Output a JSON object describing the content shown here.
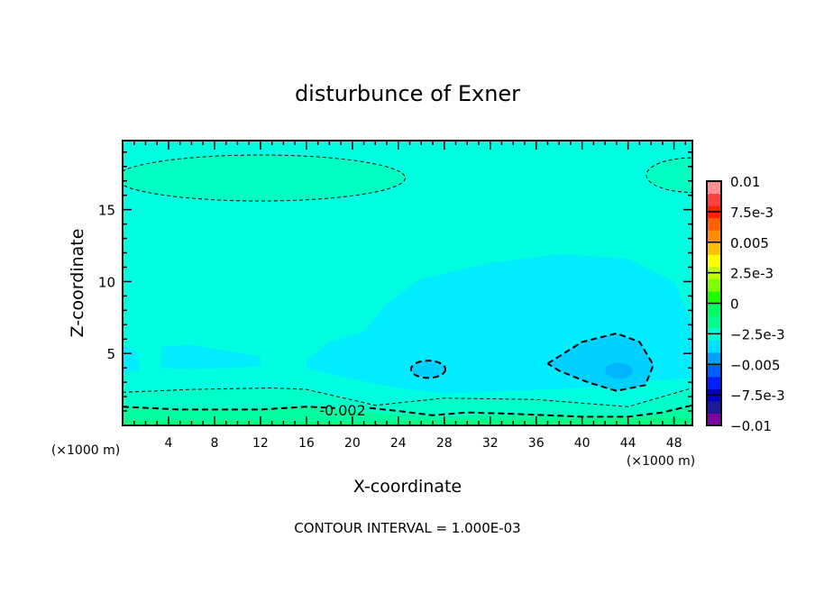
{
  "chart_data": {
    "type": "contour",
    "title": "disturbunce of Exner",
    "xlabel": "X-coordinate",
    "ylabel": "Z-coordinate",
    "x_unit_label": "(×1000 m)",
    "x_unit_label_left": "(×1000 m)",
    "xlim": [
      0,
      49.6
    ],
    "ylim": [
      0,
      19.8
    ],
    "xticks": [
      4,
      8,
      12,
      16,
      20,
      24,
      28,
      32,
      36,
      40,
      44,
      48
    ],
    "yticks": [
      5,
      10,
      15
    ],
    "footer": "CONTOUR INTERVAL = 1.000E-03",
    "contour_interval": 0.001,
    "contour_label": "-0.002",
    "colorbar": {
      "range": [
        -0.01,
        0.01
      ],
      "ticks": [
        {
          "value": 0.01,
          "label": "0.01"
        },
        {
          "value": 0.0075,
          "label": "7.5e-3"
        },
        {
          "value": 0.005,
          "label": "0.005"
        },
        {
          "value": 0.0025,
          "label": "2.5e-3"
        },
        {
          "value": 0,
          "label": "0"
        },
        {
          "value": -0.0025,
          "label": "−2.5e-3"
        },
        {
          "value": -0.005,
          "label": "−0.005"
        },
        {
          "value": -0.0075,
          "label": "−7.5e-3"
        },
        {
          "value": -0.01,
          "label": "−0.01"
        }
      ],
      "colors": [
        "#8000a0",
        "#1a1a9a",
        "#0000c8",
        "#0020ff",
        "#0060ff",
        "#00a0ff",
        "#00e0ff",
        "#00ffd0",
        "#00ff90",
        "#00ff60",
        "#20ff00",
        "#80ff00",
        "#c0ff00",
        "#ffff00",
        "#ffc000",
        "#ff9000",
        "#ff6000",
        "#ff2000",
        "#ff4040",
        "#ff9090"
      ]
    },
    "regions": [
      {
        "name": "background",
        "level": -0.0025,
        "color": "#00ffe0"
      },
      {
        "name": "top-left-high",
        "level": -0.0015,
        "color": "#00ffc0",
        "ellipse": [
          12,
          17.2,
          12.6,
          1.6
        ]
      },
      {
        "name": "top-right-high",
        "level": -0.0015,
        "color": "#00ffc0",
        "ellipse": [
          49.6,
          17.4,
          4,
          1.2
        ]
      },
      {
        "name": "left-low",
        "level": -0.0035,
        "color": "#00ecff",
        "poly": [
          [
            0,
            5.6
          ],
          [
            1.4,
            5
          ],
          [
            1.4,
            3.8
          ],
          [
            0,
            3.6
          ]
        ]
      },
      {
        "name": "left-low-2",
        "level": -0.0035,
        "color": "#00ecff",
        "poly": [
          [
            3.4,
            5.5
          ],
          [
            6,
            5.6
          ],
          [
            9,
            5.2
          ],
          [
            12,
            4.8
          ],
          [
            12,
            4.1
          ],
          [
            9,
            4
          ],
          [
            6,
            3.9
          ],
          [
            3.4,
            4
          ]
        ]
      },
      {
        "name": "central-low",
        "level": -0.0035,
        "color": "#00ecff",
        "poly": [
          [
            16,
            4.5
          ],
          [
            18,
            5.8
          ],
          [
            21,
            6.5
          ],
          [
            23,
            8.5
          ],
          [
            26,
            10.2
          ],
          [
            32,
            11.3
          ],
          [
            38,
            11.9
          ],
          [
            44,
            11.6
          ],
          [
            48,
            10
          ],
          [
            49.6,
            7
          ],
          [
            49.6,
            3.3
          ],
          [
            44,
            3
          ],
          [
            40,
            2.6
          ],
          [
            34,
            2.4
          ],
          [
            28,
            2.2
          ],
          [
            24,
            2.6
          ],
          [
            20,
            3.2
          ],
          [
            16,
            4
          ]
        ]
      },
      {
        "name": "low-small",
        "level": -0.0045,
        "color": "#00d0ff",
        "ellipse": [
          26.6,
          3.9,
          1.5,
          0.6
        ]
      },
      {
        "name": "low-big",
        "level": -0.0045,
        "color": "#00d0ff",
        "poly": [
          [
            37,
            4.3
          ],
          [
            40,
            5.8
          ],
          [
            43,
            6.4
          ],
          [
            45,
            5.8
          ],
          [
            46.2,
            4.2
          ],
          [
            45.5,
            2.8
          ],
          [
            43,
            2.4
          ],
          [
            40.5,
            3
          ],
          [
            38,
            3.8
          ]
        ]
      },
      {
        "name": "low-core",
        "level": -0.0055,
        "color": "#00b4ff",
        "ellipse": [
          43.2,
          3.8,
          1.2,
          0.55
        ]
      },
      {
        "name": "bottom-band-1",
        "level": -0.0015,
        "color": "#00ffc8",
        "poly": [
          [
            0,
            2.4
          ],
          [
            13,
            2.6
          ],
          [
            16,
            2.5
          ],
          [
            22,
            1.4
          ],
          [
            28,
            1.9
          ],
          [
            36,
            1.8
          ],
          [
            44,
            1.3
          ],
          [
            49.6,
            2.6
          ],
          [
            49.6,
            0
          ],
          [
            0,
            0
          ]
        ]
      },
      {
        "name": "bottom-band-2",
        "level": -0.0005,
        "color": "#00ffa0",
        "poly": [
          [
            0,
            1.3
          ],
          [
            5,
            1.1
          ],
          [
            12,
            1.1
          ],
          [
            16,
            1.3
          ],
          [
            22,
            0.9
          ],
          [
            28,
            0.6
          ],
          [
            34,
            0.8
          ],
          [
            42,
            0.6
          ],
          [
            46,
            0.7
          ],
          [
            49.6,
            1.4
          ],
          [
            49.6,
            0
          ],
          [
            0,
            0
          ]
        ]
      },
      {
        "name": "bottom-band-3",
        "level": 0.0,
        "color": "#00ff80",
        "poly": [
          [
            0,
            0.4
          ],
          [
            20,
            0.3
          ],
          [
            30,
            0.4
          ],
          [
            49.6,
            0.5
          ],
          [
            49.6,
            0
          ],
          [
            0,
            0
          ]
        ]
      }
    ],
    "contours": [
      {
        "level": -0.001,
        "ellipse": [
          12,
          17.2,
          12.6,
          1.6
        ],
        "width": 1
      },
      {
        "level": -0.001,
        "ellipse": [
          49.6,
          17.4,
          4,
          1.2
        ],
        "width": 1
      },
      {
        "level": -0.004,
        "ellipse": [
          26.6,
          3.9,
          1.5,
          0.6
        ],
        "width": 2
      },
      {
        "level": -0.004,
        "poly": [
          [
            37,
            4.3
          ],
          [
            40,
            5.8
          ],
          [
            43,
            6.4
          ],
          [
            45,
            5.8
          ],
          [
            46.2,
            4.2
          ],
          [
            45.5,
            2.8
          ],
          [
            43,
            2.4
          ],
          [
            40.5,
            3
          ],
          [
            38,
            3.8
          ],
          [
            37,
            4.3
          ]
        ],
        "width": 2
      },
      {
        "level": -0.002,
        "line": [
          [
            0,
            2.3
          ],
          [
            6,
            2.5
          ],
          [
            13,
            2.6
          ],
          [
            16,
            2.5
          ],
          [
            22,
            1.4
          ],
          [
            28,
            1.9
          ],
          [
            36,
            1.8
          ],
          [
            44,
            1.3
          ],
          [
            49.6,
            2.6
          ]
        ],
        "width": 1
      },
      {
        "level": -0.002,
        "line": [
          [
            0,
            1.3
          ],
          [
            5,
            1.1
          ],
          [
            12,
            1.1
          ],
          [
            16,
            1.3
          ],
          [
            18.5,
            1.2
          ]
        ],
        "width": 2
      },
      {
        "level": -0.002,
        "line": [
          [
            21.5,
            1.2
          ],
          [
            24,
            1.0
          ],
          [
            27,
            0.7
          ],
          [
            30,
            0.9
          ],
          [
            34,
            0.8
          ],
          [
            40,
            0.6
          ],
          [
            44,
            0.6
          ],
          [
            47,
            0.9
          ],
          [
            49.6,
            1.4
          ]
        ],
        "width": 2
      }
    ]
  }
}
